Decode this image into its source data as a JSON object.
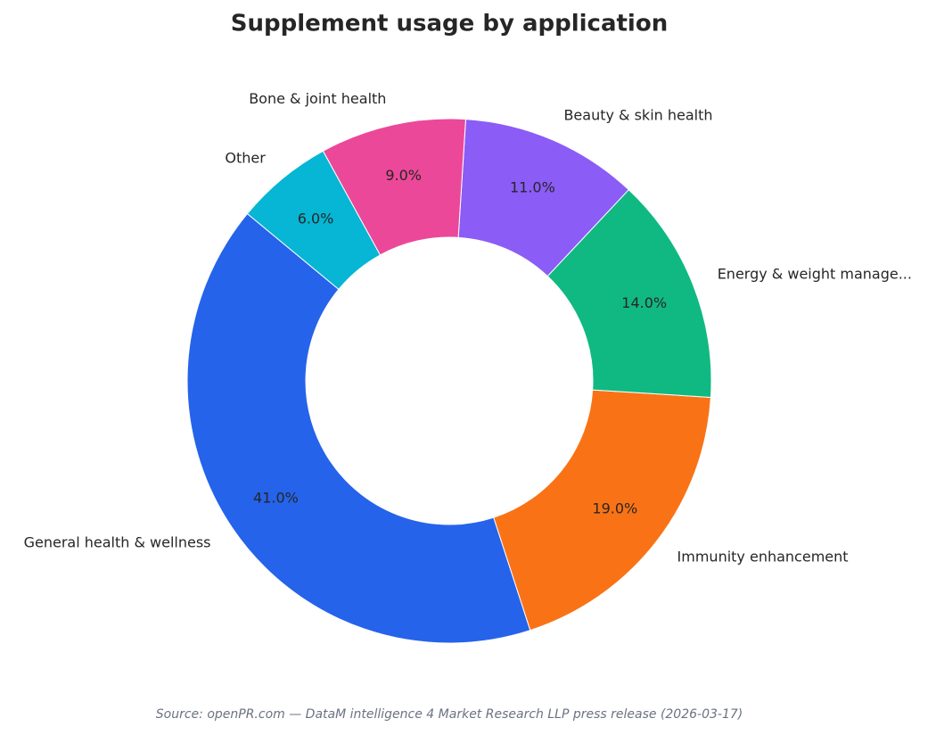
{
  "chart_data": {
    "type": "donut",
    "title": "Supplement usage by application",
    "categories": [
      "General health & wellness",
      "Immunity enhancement",
      "Energy & weight manage...",
      "Beauty & skin health",
      "Bone & joint health",
      "Other"
    ],
    "values": [
      41,
      19,
      14,
      11,
      9,
      6
    ],
    "value_labels": [
      "41.0%",
      "19.0%",
      "14.0%",
      "11.0%",
      "9.0%",
      "6.0%"
    ],
    "colors": [
      "#2563eb",
      "#f97316",
      "#10b981",
      "#8b5cf6",
      "#ec4899",
      "#06b6d4"
    ],
    "source": "Source: openPR.com — DataM intelligence 4 Market Research LLP press release (2026-03-17)"
  }
}
